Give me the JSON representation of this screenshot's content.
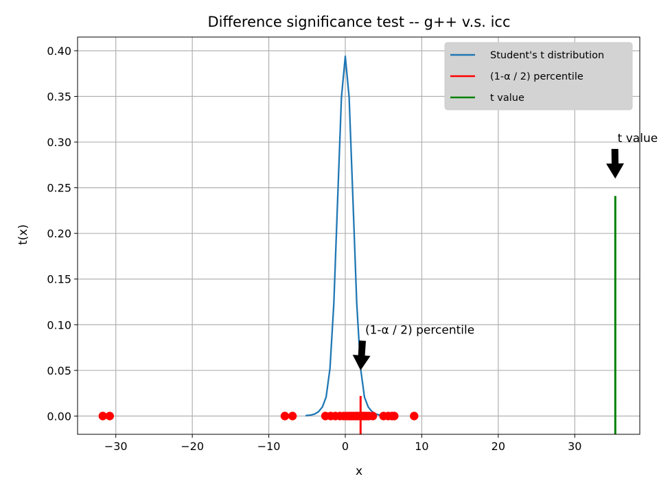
{
  "chart_data": {
    "type": "line",
    "title": "Difference significance test -- g++ v.s. icc",
    "xlabel": "x",
    "ylabel": "t(x)",
    "xlim": [
      -35,
      38.5
    ],
    "ylim": [
      -0.02,
      0.415
    ],
    "x_ticks": [
      -30,
      -20,
      -10,
      0,
      10,
      20,
      30
    ],
    "x_tick_labels": [
      "−30",
      "−20",
      "−10",
      "0",
      "10",
      "20",
      "30"
    ],
    "y_ticks": [
      0.0,
      0.05,
      0.1,
      0.15,
      0.2,
      0.25,
      0.3,
      0.35,
      0.4
    ],
    "y_tick_labels": [
      "0.00",
      "0.05",
      "0.10",
      "0.15",
      "0.20",
      "0.25",
      "0.30",
      "0.35",
      "0.40"
    ],
    "grid": true,
    "legend_position": "top-right",
    "series": [
      {
        "name": "Student's t distribution",
        "color": "#1f77b4",
        "kind": "line",
        "x": [
          -5.2,
          -4.5,
          -4.0,
          -3.5,
          -3.0,
          -2.5,
          -2.0,
          -1.5,
          -1.0,
          -0.5,
          0.0,
          0.5,
          1.0,
          1.5,
          2.0,
          2.5,
          3.0,
          3.5,
          4.0,
          4.5,
          5.2
        ],
        "y": [
          0.0004,
          0.0011,
          0.0022,
          0.0048,
          0.0099,
          0.0209,
          0.0521,
          0.1232,
          0.238,
          0.3489,
          0.394,
          0.3489,
          0.238,
          0.1232,
          0.0521,
          0.0209,
          0.0099,
          0.0048,
          0.0022,
          0.0011,
          0.0004
        ]
      },
      {
        "name": "(1-α / 2) percentile",
        "color": "#ff0000",
        "kind": "vline",
        "x": 2.0,
        "y": [
          -0.02,
          0.022
        ]
      },
      {
        "name": "t value",
        "color": "#008000",
        "kind": "vline",
        "x": 35.3,
        "y": [
          -0.02,
          0.241
        ]
      }
    ],
    "scatter": {
      "color": "#ff0000",
      "x": [
        -31.7,
        -30.8,
        -7.9,
        -6.9,
        -2.6,
        -1.9,
        -1.3,
        -0.7,
        -0.2,
        0.2,
        0.5,
        0.8,
        1.1,
        1.4,
        1.6,
        1.9,
        2.1,
        2.3,
        2.5,
        2.8,
        3.1,
        3.6,
        5.0,
        5.6,
        6.1,
        6.4,
        9.0
      ],
      "y": [
        0,
        0,
        0,
        0,
        0,
        0,
        0,
        0,
        0,
        0,
        0,
        0,
        0,
        0,
        0,
        0,
        0,
        0,
        0,
        0,
        0,
        0,
        0,
        0,
        0,
        0,
        0
      ]
    },
    "annotations": [
      {
        "text": "(1-α / 2) percentile",
        "text_xy": [
          2.6,
          0.09
        ],
        "arrow_xy": [
          2.0,
          0.05
        ]
      },
      {
        "text": "t value",
        "text_xy": [
          35.6,
          0.3
        ],
        "arrow_xy": [
          35.3,
          0.26
        ]
      }
    ]
  }
}
